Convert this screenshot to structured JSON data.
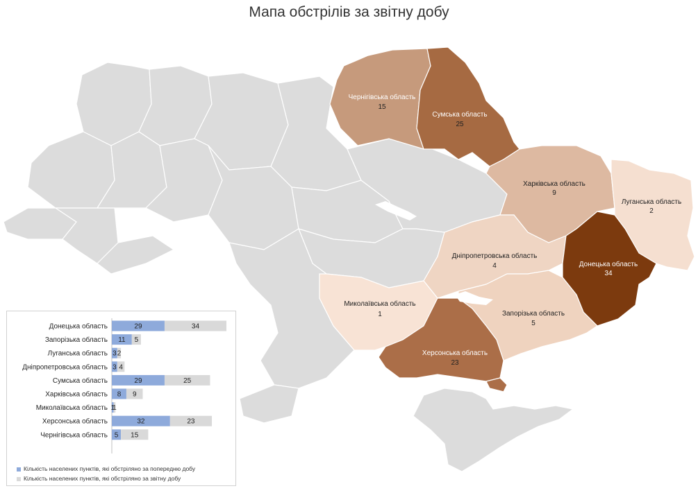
{
  "title": "Мапа обстрілів за звітну добу",
  "colors": {
    "gray": "#dcdcdc",
    "blue": "#8eaadb",
    "lightgray": "#d9d9d9",
    "c1": "#f2d7c5",
    "c2": "#c79a7d",
    "c3": "#a96d45",
    "c4": "#7b3a10"
  },
  "map": {
    "regions": [
      {
        "id": "chernihiv",
        "name": "Чернігівська область",
        "value": "15",
        "color": "#c69a7c",
        "text_color": "#ffffff"
      },
      {
        "id": "sumy",
        "name": "Сумська область",
        "value": "25",
        "color": "#a66a42",
        "text_color": "#ffffff"
      },
      {
        "id": "kharkiv",
        "name": "Харківська область",
        "value": "9",
        "color": "#ddb9a1",
        "text_color": "#222222"
      },
      {
        "id": "luhansk",
        "name": "Луганська область",
        "value": "2",
        "color": "#f5dfd0",
        "text_color": "#222222"
      },
      {
        "id": "dnipro",
        "name": "Дніпропетровська область",
        "value": "4",
        "color": "#efd5c3",
        "text_color": "#222222"
      },
      {
        "id": "donetsk",
        "name": "Донецька область",
        "value": "34",
        "color": "#7c3a0e",
        "text_color": "#ffffff"
      },
      {
        "id": "mykolaiv",
        "name": "Миколаївська область",
        "value": "1",
        "color": "#f8e3d5",
        "text_color": "#222222"
      },
      {
        "id": "zaporizhzhia",
        "name": "Запорізька область",
        "value": "5",
        "color": "#efd3bf",
        "text_color": "#222222"
      },
      {
        "id": "kherson",
        "name": "Херсонська область",
        "value": "23",
        "color": "#ab6e48",
        "text_color": "#ffffff"
      }
    ]
  },
  "chart_data": {
    "type": "bar",
    "orientation": "horizontal",
    "stacked": true,
    "categories": [
      "Донецька область",
      "Запорізька область",
      "Луганська область",
      "Дніпропетровська область",
      "Сумська область",
      "Харківська область",
      "Миколаївська область",
      "Херсонська область",
      "Чернігівська область"
    ],
    "series": [
      {
        "name": "Кількість населених пунктів, які обстріляно за попередню добу",
        "values": [
          29,
          11,
          3,
          3,
          29,
          8,
          1,
          32,
          5
        ],
        "color": "#8eaadb"
      },
      {
        "name": "Кількість населених пунктів, які обстріляно за звітну добу",
        "values": [
          34,
          5,
          2,
          4,
          25,
          9,
          1,
          23,
          15
        ],
        "color": "#d9d9d9"
      }
    ],
    "legend_position": "bottom"
  }
}
